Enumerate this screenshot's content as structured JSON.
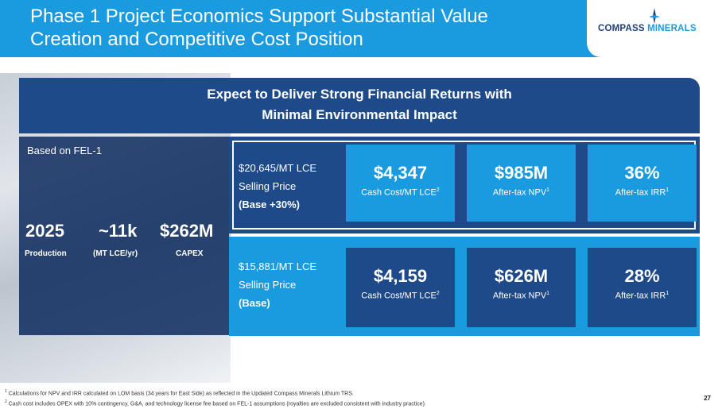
{
  "title_line1": "Phase 1 Project Economics Support Substantial Value",
  "title_line2": "Creation and Competitive Cost Position",
  "logo": {
    "part1": "COMPASS",
    "part2": "MINERALS"
  },
  "banner": {
    "line1": "Expect to Deliver Strong Financial Returns with",
    "line2": "Minimal Environmental Impact"
  },
  "left": {
    "based_on": "Based on FEL-1",
    "stats": [
      {
        "value": "2025",
        "label": "Production"
      },
      {
        "value": "~11k",
        "label": "(MT LCE/yr)"
      },
      {
        "value": "$262M",
        "label": "CAPEX"
      }
    ]
  },
  "scenarios": [
    {
      "price": "$20,645/MT LCE",
      "price_sub": "Selling Price",
      "case": "(Base +30%)",
      "metrics": [
        {
          "value": "$4,347",
          "label": "Cash Cost/MT LCE",
          "sup": "2"
        },
        {
          "value": "$985M",
          "label": "After-tax NPV",
          "sup": "1"
        },
        {
          "value": "36%",
          "label": "After-tax IRR",
          "sup": "1"
        }
      ]
    },
    {
      "price": "$15,881/MT LCE",
      "price_sub": "Selling Price",
      "case": "(Base)",
      "metrics": [
        {
          "value": "$4,159",
          "label": "Cash Cost/MT LCE",
          "sup": "2"
        },
        {
          "value": "$626M",
          "label": "After-tax NPV",
          "sup": "1"
        },
        {
          "value": "28%",
          "label": "After-tax IRR",
          "sup": "1"
        }
      ]
    }
  ],
  "footnotes": [
    {
      "num": "1",
      "text": "Calculations for NPV and IRR calculated on LOM basis (34 years for East Side) as reflected in the Updated Compass Minerals Lithium TRS."
    },
    {
      "num": "2",
      "text": "Cash cost includes OPEX with 10% contingency, G&A, and technology license fee based on FEL-1 assumptions (royalties are excluded consistent with industry practice)."
    }
  ],
  "page_number": "27",
  "colors": {
    "blue": "#1a9be0",
    "navy": "#1e4a8a"
  }
}
